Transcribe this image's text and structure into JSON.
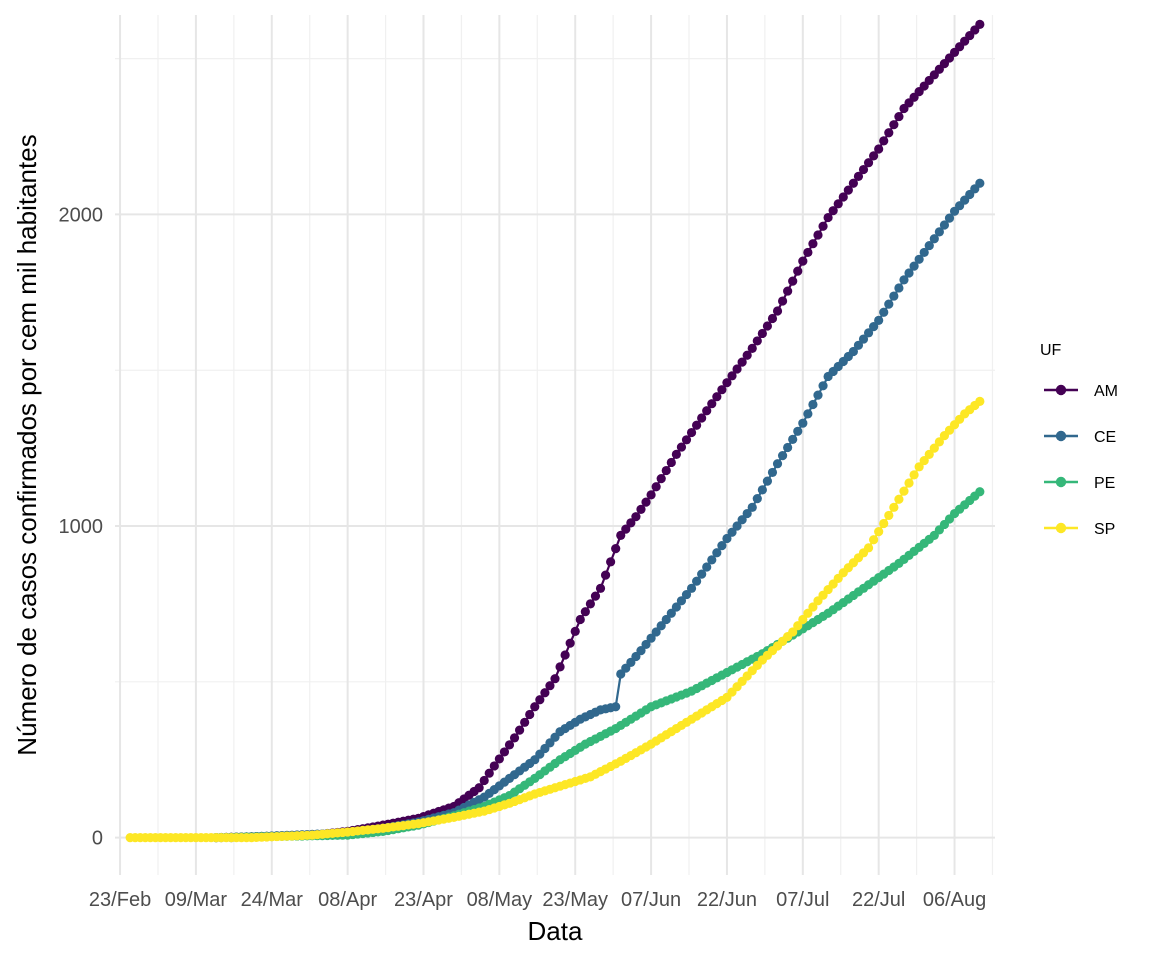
{
  "chart_data": {
    "type": "line",
    "title": "",
    "xlabel": "Data",
    "ylabel": "Número de casos confirmados por cem mil habitantes",
    "x_tick_labels": [
      "23/Feb",
      "09/Mar",
      "24/Mar",
      "08/Apr",
      "23/Apr",
      "08/May",
      "23/May",
      "07/Jun",
      "22/Jun",
      "07/Jul",
      "22/Jul",
      "06/Aug"
    ],
    "x_tick_dates": [
      "2020-02-23",
      "2020-03-09",
      "2020-03-24",
      "2020-04-08",
      "2020-04-23",
      "2020-05-08",
      "2020-05-23",
      "2020-06-07",
      "2020-06-22",
      "2020-07-07",
      "2020-07-22",
      "2020-08-06"
    ],
    "y_tick_labels": [
      "0",
      "1000",
      "2000"
    ],
    "y_ticks": [
      0,
      1000,
      2000
    ],
    "xlim": [
      "2020-02-22",
      "2020-08-14"
    ],
    "ylim": [
      -120,
      2640
    ],
    "grid": true,
    "legend": {
      "title": "UF",
      "position": "right"
    },
    "series": [
      {
        "name": "AM",
        "color": "#440154",
        "start": "2020-03-13",
        "points": [
          [
            "2020-03-13",
            0
          ],
          [
            "2020-04-01",
            8
          ],
          [
            "2020-04-08",
            20
          ],
          [
            "2020-04-15",
            40
          ],
          [
            "2020-04-22",
            62
          ],
          [
            "2020-04-29",
            100
          ],
          [
            "2020-05-04",
            160
          ],
          [
            "2020-05-07",
            230
          ],
          [
            "2020-05-11",
            320
          ],
          [
            "2020-05-15",
            420
          ],
          [
            "2020-05-19",
            510
          ],
          [
            "2020-05-24",
            700
          ],
          [
            "2020-05-28",
            800
          ],
          [
            "2020-06-01",
            970
          ],
          [
            "2020-06-04",
            1030
          ],
          [
            "2020-06-07",
            1100
          ],
          [
            "2020-06-12",
            1230
          ],
          [
            "2020-06-18",
            1370
          ],
          [
            "2020-06-22",
            1460
          ],
          [
            "2020-06-27",
            1570
          ],
          [
            "2020-07-02",
            1690
          ],
          [
            "2020-07-07",
            1850
          ],
          [
            "2020-07-12",
            1990
          ],
          [
            "2020-07-17",
            2100
          ],
          [
            "2020-07-22",
            2210
          ],
          [
            "2020-07-27",
            2340
          ],
          [
            "2020-08-01",
            2430
          ],
          [
            "2020-08-06",
            2520
          ],
          [
            "2020-08-11",
            2610
          ]
        ]
      },
      {
        "name": "CE",
        "color": "#31688e",
        "start": "2020-03-16",
        "points": [
          [
            "2020-03-16",
            0
          ],
          [
            "2020-04-08",
            15
          ],
          [
            "2020-04-15",
            30
          ],
          [
            "2020-04-22",
            50
          ],
          [
            "2020-04-29",
            80
          ],
          [
            "2020-05-05",
            130
          ],
          [
            "2020-05-10",
            190
          ],
          [
            "2020-05-15",
            250
          ],
          [
            "2020-05-20",
            340
          ],
          [
            "2020-05-24",
            380
          ],
          [
            "2020-05-28",
            410
          ],
          [
            "2020-05-31",
            420
          ],
          [
            "2020-06-01",
            525
          ],
          [
            "2020-06-05",
            600
          ],
          [
            "2020-06-10",
            700
          ],
          [
            "2020-06-15",
            800
          ],
          [
            "2020-06-22",
            960
          ],
          [
            "2020-06-27",
            1060
          ],
          [
            "2020-07-02",
            1200
          ],
          [
            "2020-07-07",
            1330
          ],
          [
            "2020-07-12",
            1480
          ],
          [
            "2020-07-17",
            1560
          ],
          [
            "2020-07-22",
            1660
          ],
          [
            "2020-07-27",
            1790
          ],
          [
            "2020-08-01",
            1900
          ],
          [
            "2020-08-06",
            2010
          ],
          [
            "2020-08-11",
            2100
          ]
        ]
      },
      {
        "name": "PE",
        "color": "#35b779",
        "start": "2020-03-13",
        "points": [
          [
            "2020-03-13",
            0
          ],
          [
            "2020-04-08",
            8
          ],
          [
            "2020-04-15",
            20
          ],
          [
            "2020-04-22",
            40
          ],
          [
            "2020-04-29",
            70
          ],
          [
            "2020-05-05",
            100
          ],
          [
            "2020-05-10",
            135
          ],
          [
            "2020-05-15",
            190
          ],
          [
            "2020-05-20",
            250
          ],
          [
            "2020-05-25",
            300
          ],
          [
            "2020-05-31",
            350
          ],
          [
            "2020-06-07",
            420
          ],
          [
            "2020-06-15",
            470
          ],
          [
            "2020-06-22",
            530
          ],
          [
            "2020-06-29",
            590
          ],
          [
            "2020-07-05",
            650
          ],
          [
            "2020-07-12",
            720
          ],
          [
            "2020-07-19",
            800
          ],
          [
            "2020-07-26",
            880
          ],
          [
            "2020-08-02",
            970
          ],
          [
            "2020-08-06",
            1040
          ],
          [
            "2020-08-11",
            1110
          ]
        ]
      },
      {
        "name": "SP",
        "color": "#fde725",
        "start": "2020-02-25",
        "points": [
          [
            "2020-02-25",
            0
          ],
          [
            "2020-03-20",
            0
          ],
          [
            "2020-04-01",
            8
          ],
          [
            "2020-04-08",
            18
          ],
          [
            "2020-04-15",
            30
          ],
          [
            "2020-04-22",
            45
          ],
          [
            "2020-04-29",
            65
          ],
          [
            "2020-05-05",
            85
          ],
          [
            "2020-05-10",
            110
          ],
          [
            "2020-05-15",
            140
          ],
          [
            "2020-05-20",
            165
          ],
          [
            "2020-05-26",
            195
          ],
          [
            "2020-06-01",
            245
          ],
          [
            "2020-06-07",
            300
          ],
          [
            "2020-06-15",
            380
          ],
          [
            "2020-06-22",
            450
          ],
          [
            "2020-06-29",
            570
          ],
          [
            "2020-07-05",
            660
          ],
          [
            "2020-07-10",
            760
          ],
          [
            "2020-07-15",
            850
          ],
          [
            "2020-07-20",
            930
          ],
          [
            "2020-07-25",
            1060
          ],
          [
            "2020-07-30",
            1190
          ],
          [
            "2020-08-04",
            1290
          ],
          [
            "2020-08-08",
            1360
          ],
          [
            "2020-08-11",
            1400
          ]
        ]
      }
    ]
  }
}
